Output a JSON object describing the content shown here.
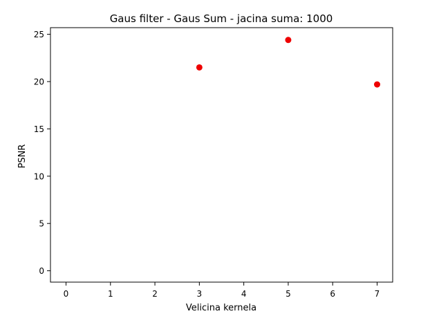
{
  "chart_data": {
    "type": "scatter",
    "title": "Gaus filter - Gaus Sum - jacina suma: 1000",
    "xlabel": "Velicina kernela",
    "ylabel": "PSNR",
    "x": [
      3,
      5,
      7
    ],
    "y": [
      21.5,
      24.4,
      19.7
    ],
    "xlim": [
      -0.35,
      7.35
    ],
    "ylim": [
      -1.2,
      25.7
    ],
    "xticks": [
      0,
      1,
      2,
      3,
      4,
      5,
      6,
      7
    ],
    "yticks": [
      0,
      5,
      10,
      15,
      20,
      25
    ],
    "marker_color": "#ee0000",
    "grid": false,
    "legend": null
  }
}
